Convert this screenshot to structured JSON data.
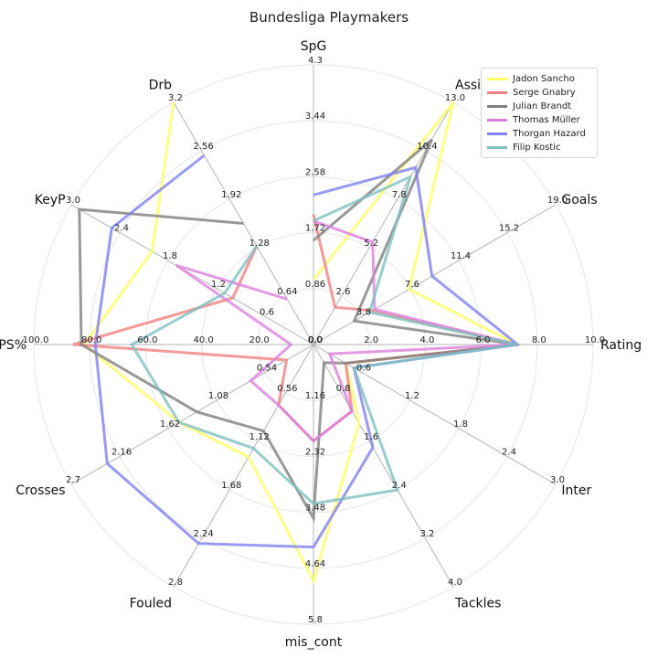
{
  "chart_data": {
    "type": "radar",
    "title": "Bundesliga Playmakers",
    "legend_position": "top-right",
    "grid": true,
    "axes": [
      {
        "name": "SpG",
        "max": 4.3,
        "ticks": [
          "0.0",
          "0.86",
          "1.72",
          "2.58",
          "3.44",
          "4.3"
        ]
      },
      {
        "name": "Assists",
        "max": 13.0,
        "ticks": [
          "0.0",
          "2.6",
          "5.2",
          "7.8",
          "10.4",
          "13.0"
        ]
      },
      {
        "name": "Goals",
        "max": 19.0,
        "ticks": [
          "0.0",
          "3.8",
          "7.6",
          "11.4",
          "15.2",
          "19.0"
        ]
      },
      {
        "name": "Rating",
        "max": 10.0,
        "ticks": [
          "0.0",
          "2.0",
          "4.0",
          "6.0",
          "8.0",
          "10.0"
        ]
      },
      {
        "name": "Inter",
        "max": 3.0,
        "ticks": [
          "0.0",
          "0.6",
          "1.2",
          "1.8",
          "2.4",
          "3.0"
        ]
      },
      {
        "name": "Tackles",
        "max": 4.0,
        "ticks": [
          "0.0",
          "0.8",
          "1.6",
          "2.4",
          "3.2",
          "4.0"
        ]
      },
      {
        "name": "mis_cont",
        "max": 5.8,
        "ticks": [
          "0.0",
          "1.16",
          "2.32",
          "3.48",
          "4.64",
          "5.8"
        ]
      },
      {
        "name": "Fouled",
        "max": 2.8,
        "ticks": [
          "0.0",
          "0.56",
          "1.12",
          "1.68",
          "2.24",
          "2.8"
        ]
      },
      {
        "name": "Crosses",
        "max": 2.7,
        "ticks": [
          "0.0",
          "0.54",
          "1.08",
          "1.62",
          "2.16",
          "2.7"
        ]
      },
      {
        "name": "PS%",
        "max": 100.0,
        "ticks": [
          "0.0",
          "20.0",
          "40.0",
          "60.0",
          "80.0",
          "100.0"
        ]
      },
      {
        "name": "KeyP",
        "max": 3.0,
        "ticks": [
          "0.0",
          "0.6",
          "1.2",
          "1.8",
          "2.4",
          "3.0"
        ]
      },
      {
        "name": "Drb",
        "max": 3.2,
        "ticks": [
          "0.0",
          "0.64",
          "1.28",
          "1.92",
          "2.56",
          "3.2"
        ]
      }
    ],
    "series": [
      {
        "name": "Jadon Sancho",
        "color": "#ffff66",
        "values": [
          1.0,
          13.0,
          7.5,
          7.3,
          0.4,
          1.3,
          4.9,
          1.3,
          1.5,
          82,
          2.0,
          3.2
        ]
      },
      {
        "name": "Serge Gnabry",
        "color": "#f28080",
        "values": [
          2.0,
          2.0,
          4.6,
          7.3,
          0.4,
          1.1,
          2.0,
          0.7,
          0.3,
          86,
          1.0,
          1.3
        ]
      },
      {
        "name": "Julian Brandt",
        "color": "#808080",
        "values": [
          1.6,
          11.0,
          3.2,
          7.3,
          0.4,
          0.3,
          3.6,
          1.0,
          1.3,
          83,
          2.9,
          1.6
        ]
      },
      {
        "name": "Thomas Müller",
        "color": "#dd80dd",
        "values": [
          1.9,
          5.5,
          4.8,
          7.3,
          0.2,
          1.1,
          2.0,
          0.7,
          0.7,
          8,
          1.7,
          0.6
        ]
      },
      {
        "name": "Thorgan Hazard",
        "color": "#8080f0",
        "values": [
          2.3,
          9.5,
          9.3,
          7.3,
          0.5,
          1.7,
          4.2,
          2.3,
          2.3,
          78,
          2.5,
          2.5
        ]
      },
      {
        "name": "Filip Kostic",
        "color": "#80c0c0",
        "values": [
          1.9,
          9.0,
          4.4,
          7.3,
          0.5,
          2.4,
          3.3,
          1.2,
          1.5,
          65,
          1.1,
          1.3
        ]
      }
    ]
  }
}
